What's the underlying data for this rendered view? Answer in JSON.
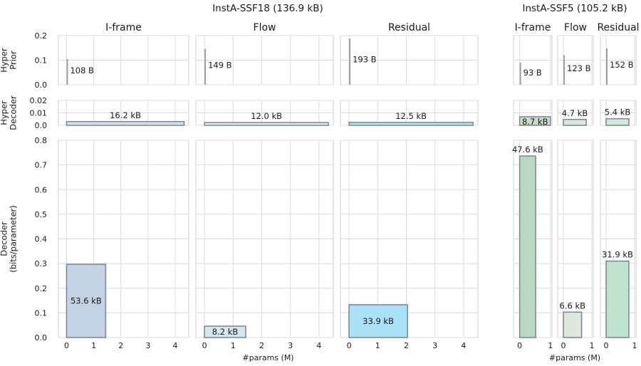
{
  "chart_data": {
    "type": "bar",
    "groups": [
      {
        "title": "InstA-SSF18 (136.9 kB)",
        "columns": [
          "I-frame",
          "Flow",
          "Residual"
        ],
        "xlim": [
          -0.3,
          4.5
        ],
        "xticks": [
          0,
          1,
          2,
          3,
          4
        ]
      },
      {
        "title": "InstA-SSF5 (105.2 kB)",
        "columns": [
          "I-frame",
          "Flow",
          "Residual"
        ],
        "xlim": [
          -0.2,
          1.05
        ],
        "xticks": [
          0,
          1
        ]
      }
    ],
    "rows": [
      {
        "label_lines": [
          "Hyper",
          "Prior"
        ],
        "ylim": [
          0,
          0.2
        ],
        "yticks": [
          "0.0",
          "0.1",
          "0.2"
        ]
      },
      {
        "label_lines": [
          "Hyper",
          "Decoder"
        ],
        "ylim": [
          0,
          0.02
        ],
        "yticks": [
          "0.0",
          "0.01",
          "0.02"
        ]
      },
      {
        "label_lines": [
          "Decoder",
          "(bits/parameter)"
        ],
        "ylim": [
          0,
          0.8
        ],
        "yticks": [
          "0.0",
          "0.1",
          "0.2",
          "0.3",
          "0.4",
          "0.5",
          "0.6",
          "0.7",
          "0.8"
        ]
      }
    ],
    "xlabel": "#params (M)",
    "bars": [
      {
        "group": 0,
        "col": 0,
        "row": 0,
        "params_m": 0.01,
        "bpp": 0.105,
        "label": "108 B",
        "color": "#b0b0b0",
        "style": "line"
      },
      {
        "group": 0,
        "col": 1,
        "row": 0,
        "params_m": 0.01,
        "bpp": 0.146,
        "label": "149 B",
        "color": "#b0b0b0",
        "style": "line"
      },
      {
        "group": 0,
        "col": 2,
        "row": 0,
        "params_m": 0.01,
        "bpp": 0.188,
        "label": "193 B",
        "color": "#b0b0b0",
        "style": "line"
      },
      {
        "group": 1,
        "col": 0,
        "row": 0,
        "params_m": 0.01,
        "bpp": 0.09,
        "label": "93 B",
        "color": "#b0b0b0",
        "style": "line"
      },
      {
        "group": 1,
        "col": 1,
        "row": 0,
        "params_m": 0.01,
        "bpp": 0.12,
        "label": "123 B",
        "color": "#b0b0b0",
        "style": "line"
      },
      {
        "group": 1,
        "col": 2,
        "row": 0,
        "params_m": 0.01,
        "bpp": 0.148,
        "label": "152 B",
        "color": "#b0b0b0",
        "style": "line"
      },
      {
        "group": 0,
        "col": 0,
        "row": 1,
        "params_m": 4.33,
        "bpp": 0.003,
        "label": "16.2 kB",
        "color": "#d6e0ea"
      },
      {
        "group": 0,
        "col": 1,
        "row": 1,
        "params_m": 4.33,
        "bpp": 0.0022,
        "label": "12.0 kB",
        "color": "#e3eef0"
      },
      {
        "group": 0,
        "col": 2,
        "row": 1,
        "params_m": 4.33,
        "bpp": 0.0023,
        "label": "12.5 kB",
        "color": "#b6e6f6"
      },
      {
        "group": 1,
        "col": 0,
        "row": 1,
        "params_m": 1.0,
        "bpp": 0.0069,
        "label": "8.7 kB",
        "color": "#c6deca"
      },
      {
        "group": 1,
        "col": 1,
        "row": 1,
        "params_m": 0.8,
        "bpp": 0.0047,
        "label": "4.7 kB",
        "color": "#dde7dc"
      },
      {
        "group": 1,
        "col": 2,
        "row": 1,
        "params_m": 0.8,
        "bpp": 0.0053,
        "label": "5.4 kB",
        "color": "#d2ead9"
      },
      {
        "group": 0,
        "col": 0,
        "row": 2,
        "params_m": 1.44,
        "bpp": 0.297,
        "label": "53.6 kB",
        "color": "#c3d3e3"
      },
      {
        "group": 0,
        "col": 1,
        "row": 2,
        "params_m": 1.44,
        "bpp": 0.046,
        "label": "8.2 kB",
        "color": "#d6e6ef"
      },
      {
        "group": 0,
        "col": 2,
        "row": 2,
        "params_m": 2.04,
        "bpp": 0.133,
        "label": "33.9 kB",
        "color": "#a9e2f6"
      },
      {
        "group": 1,
        "col": 0,
        "row": 2,
        "params_m": 0.52,
        "bpp": 0.736,
        "label": "47.6 kB",
        "color": "#b9d8c2"
      },
      {
        "group": 1,
        "col": 1,
        "row": 2,
        "params_m": 0.64,
        "bpp": 0.103,
        "label": "6.6 kB",
        "color": "#dde7dc"
      },
      {
        "group": 1,
        "col": 2,
        "row": 2,
        "params_m": 0.8,
        "bpp": 0.31,
        "label": "31.9 kB",
        "color": "#bfe3cc"
      }
    ]
  }
}
